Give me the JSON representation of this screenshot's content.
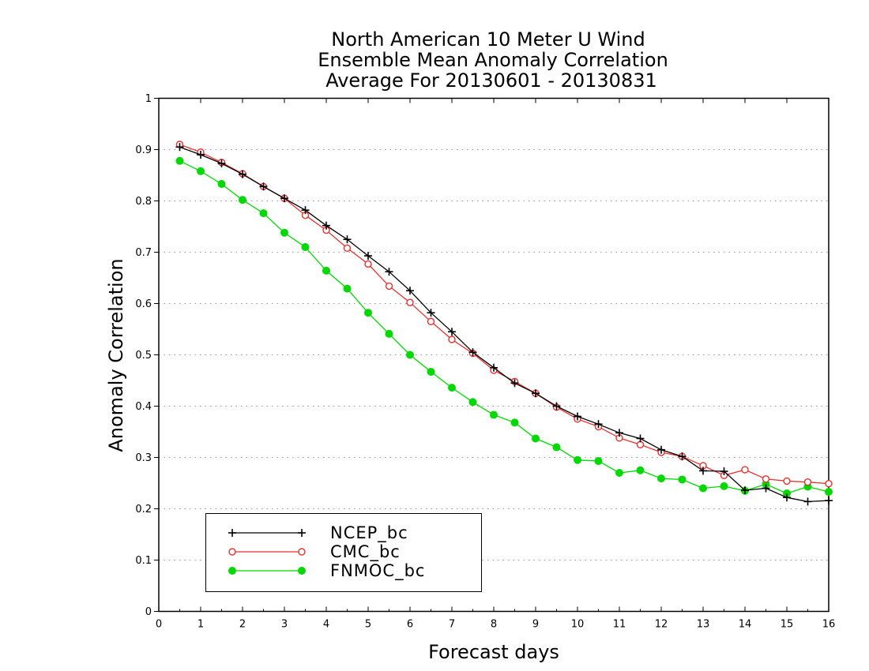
{
  "chart_data": {
    "type": "line",
    "title": [
      "North American 10 Meter U Wind",
      "Ensemble Mean Anomaly Correlation",
      "Average For 20130601 - 20130831"
    ],
    "xlabel": "Forecast days",
    "ylabel": "Anomaly Correlation",
    "xlim": [
      0,
      16
    ],
    "ylim": [
      0,
      1
    ],
    "xticks": [
      "0",
      "1",
      "2",
      "3",
      "4",
      "5",
      "6",
      "7",
      "8",
      "9",
      "10",
      "11",
      "12",
      "13",
      "14",
      "15",
      "16"
    ],
    "yticks": [
      "0",
      "0.1",
      "0.2",
      "0.3",
      "0.4",
      "0.5",
      "0.6",
      "0.7",
      "0.8",
      "0.9",
      "1"
    ],
    "grid": "horizontal dotted",
    "legend_position": "bottom-left",
    "x": [
      0.5,
      1,
      1.5,
      2,
      2.5,
      3,
      3.5,
      4,
      4.5,
      5,
      5.5,
      6,
      6.5,
      7,
      7.5,
      8,
      8.5,
      9,
      9.5,
      10,
      10.5,
      11,
      11.5,
      12,
      12.5,
      13,
      13.5,
      14,
      14.5,
      15,
      15.5,
      16
    ],
    "series": [
      {
        "name": "NCEP_bc",
        "color": "#000000",
        "marker": "plus",
        "values": [
          0.905,
          0.89,
          0.873,
          0.852,
          0.828,
          0.805,
          0.782,
          0.752,
          0.725,
          0.693,
          0.662,
          0.625,
          0.582,
          0.545,
          0.505,
          0.475,
          0.445,
          0.425,
          0.4,
          0.38,
          0.365,
          0.348,
          0.337,
          0.315,
          0.302,
          0.274,
          0.273,
          0.236,
          0.24,
          0.222,
          0.214,
          0.216
        ]
      },
      {
        "name": "CMC_bc",
        "color": "#e83030",
        "marker": "open-circle",
        "values": [
          0.91,
          0.895,
          0.875,
          0.853,
          0.828,
          0.805,
          0.772,
          0.743,
          0.708,
          0.677,
          0.634,
          0.602,
          0.565,
          0.53,
          0.503,
          0.47,
          0.448,
          0.425,
          0.398,
          0.375,
          0.36,
          0.338,
          0.325,
          0.31,
          0.302,
          0.284,
          0.265,
          0.276,
          0.258,
          0.254,
          0.252,
          0.249
        ]
      },
      {
        "name": "FNMOC_bc",
        "color": "#00d800",
        "marker": "filled-circle",
        "values": [
          0.878,
          0.858,
          0.833,
          0.802,
          0.776,
          0.738,
          0.71,
          0.664,
          0.629,
          0.582,
          0.541,
          0.5,
          0.467,
          0.436,
          0.408,
          0.383,
          0.368,
          0.337,
          0.32,
          0.295,
          0.293,
          0.27,
          0.275,
          0.259,
          0.257,
          0.24,
          0.244,
          0.235,
          0.248,
          0.23,
          0.243,
          0.233
        ]
      }
    ]
  }
}
